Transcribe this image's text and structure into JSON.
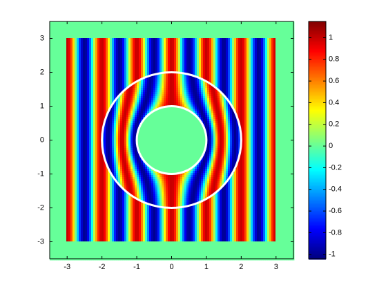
{
  "chart_data": {
    "type": "field",
    "xlim": [
      -3.5,
      3.5
    ],
    "ylim": [
      -3.5,
      3.5
    ],
    "xticks": [
      -3,
      -2,
      -1,
      0,
      1,
      2,
      3
    ],
    "yticks": [
      -3,
      -2,
      -1,
      0,
      1,
      2,
      3
    ],
    "colorbar": {
      "clim": [
        -1.04,
        1.15
      ],
      "ticks": [
        -1,
        -0.8,
        -0.6,
        -0.4,
        -0.2,
        0,
        0.2,
        0.4,
        0.6,
        0.8,
        1
      ]
    }
  }
}
